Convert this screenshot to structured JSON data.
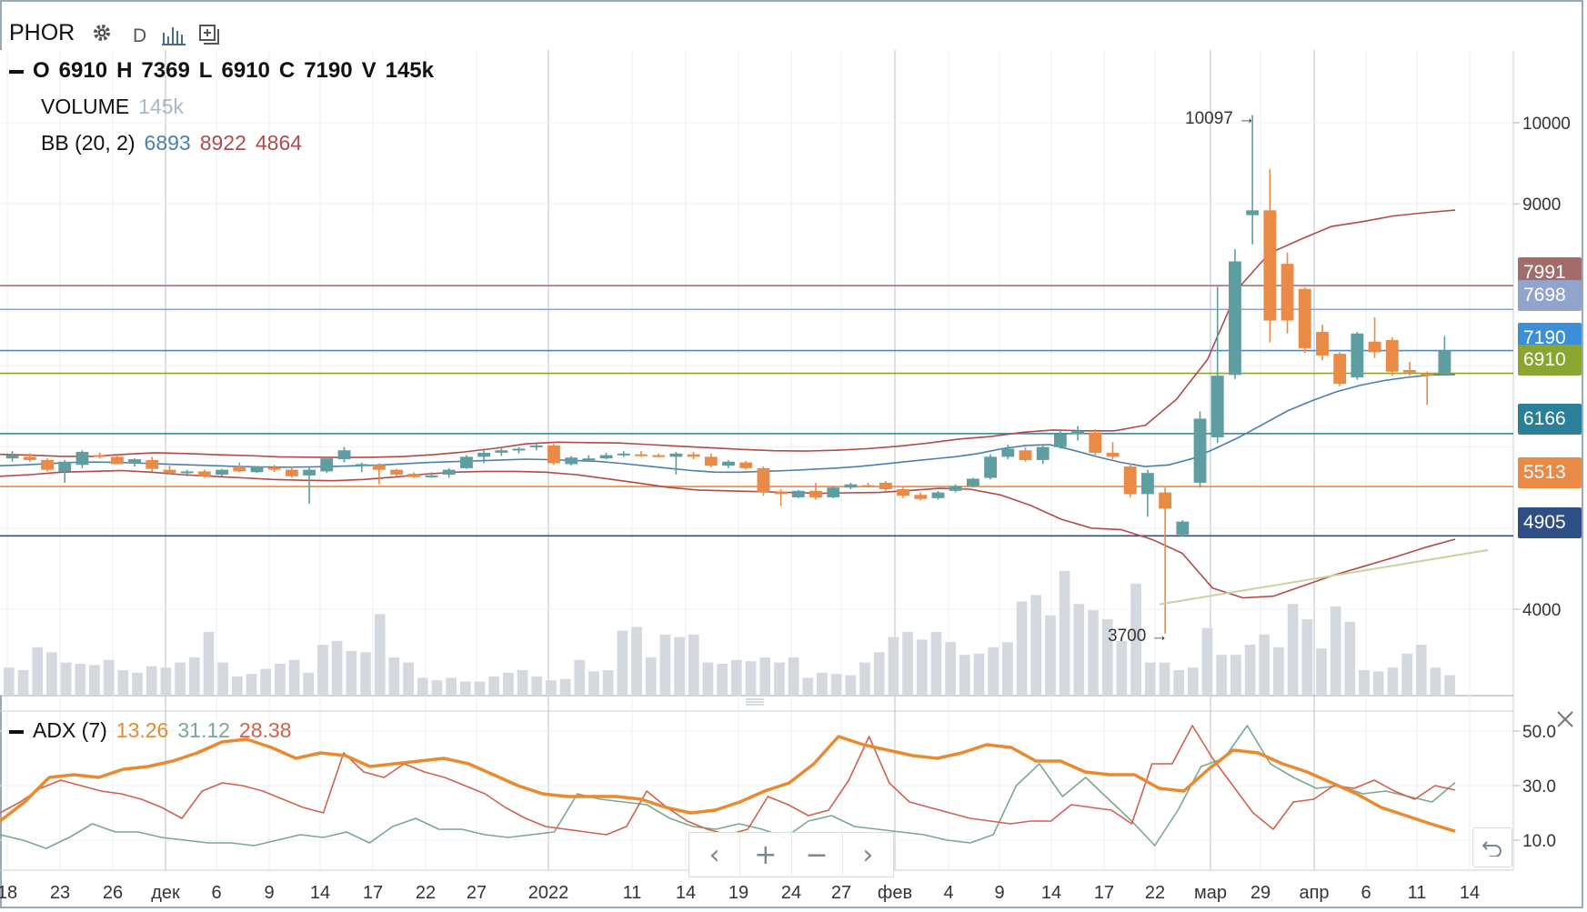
{
  "header": {
    "symbol": "PHOR",
    "timeframe": "D",
    "ohlc": {
      "o_label": "O",
      "o": "6910",
      "h_label": "H",
      "h": "7369",
      "l_label": "L",
      "l": "6910",
      "c_label": "C",
      "c": "7190",
      "v_label": "V",
      "v": "145k"
    },
    "volume_label": "VOLUME",
    "volume_value": "145k",
    "bb_label": "BB (20, 2)",
    "bb_mid": "6893",
    "bb_upper": "8922",
    "bb_lower": "4864",
    "adx_label": "ADX (7)",
    "adx_val": "13.26",
    "pdi_val": "31.12",
    "mdi_val": "28.38"
  },
  "icons": [
    "gear-icon",
    "bars-icon",
    "add-indicator-icon",
    "close-icon",
    "undo-icon",
    "chevron-left-icon",
    "plus-icon",
    "minus-icon",
    "chevron-right-icon"
  ],
  "colors": {
    "up": "#5f9ea0",
    "down": "#e98a47",
    "bb_mid": "#4b7fb0",
    "bb_band": "#b24b47",
    "volume": "#d3d9de",
    "adx": "#e98a30",
    "pdi": "#7aa98d",
    "mdi": "#d46050",
    "trend": "#c7d3a0"
  },
  "price_axis": {
    "ticks": [
      "10000",
      "9000",
      "4000"
    ]
  },
  "adx_axis": {
    "ticks": [
      "50.0",
      "30.0",
      "10.0"
    ]
  },
  "price_tags": [
    {
      "value": "7991",
      "color": "#a36c6a"
    },
    {
      "value": "7698",
      "color": "#93a4cc"
    },
    {
      "value": "7190",
      "color": "#3b8fd9"
    },
    {
      "value": "6910",
      "color": "#8aa631"
    },
    {
      "value": "6166",
      "color": "#2b7f98"
    },
    {
      "value": "5513",
      "color": "#e98a47"
    },
    {
      "value": "4905",
      "color": "#2e4f86"
    }
  ],
  "annotations": {
    "max": "10097 →",
    "min": "3700 →"
  },
  "x_labels": [
    "18",
    "23",
    "26",
    "дек",
    "6",
    "9",
    "14",
    "17",
    "22",
    "27",
    "2022",
    "11",
    "14",
    "19",
    "24",
    "27",
    "фев",
    "4",
    "9",
    "14",
    "17",
    "22",
    "мар",
    "29",
    "апр",
    "6",
    "11",
    "14"
  ],
  "chart_data": {
    "type": "candlestick",
    "ylim": [
      3000,
      10500
    ],
    "adx_ylim": [
      0,
      60
    ],
    "horizontal_levels": [
      7991,
      7698,
      7190,
      6910,
      6166,
      5513,
      4905
    ],
    "candles": [
      [
        5860,
        5950,
        5820,
        5900
      ],
      [
        5880,
        5920,
        5820,
        5840
      ],
      [
        5840,
        5860,
        5700,
        5720
      ],
      [
        5700,
        5840,
        5560,
        5820
      ],
      [
        5780,
        5960,
        5740,
        5940
      ],
      [
        5900,
        5930,
        5860,
        5880
      ],
      [
        5880,
        5900,
        5790,
        5790
      ],
      [
        5800,
        5860,
        5760,
        5850
      ],
      [
        5840,
        5880,
        5700,
        5730
      ],
      [
        5720,
        5770,
        5660,
        5680
      ],
      [
        5690,
        5720,
        5640,
        5700
      ],
      [
        5700,
        5720,
        5620,
        5640
      ],
      [
        5660,
        5730,
        5640,
        5720
      ],
      [
        5760,
        5810,
        5690,
        5700
      ],
      [
        5690,
        5760,
        5680,
        5760
      ],
      [
        5750,
        5780,
        5690,
        5720
      ],
      [
        5720,
        5760,
        5620,
        5640
      ],
      [
        5650,
        5750,
        5300,
        5720
      ],
      [
        5700,
        5880,
        5680,
        5860
      ],
      [
        5850,
        6000,
        5810,
        5960
      ],
      [
        5780,
        5810,
        5690,
        5790
      ],
      [
        5780,
        5800,
        5540,
        5720
      ],
      [
        5720,
        5730,
        5640,
        5660
      ],
      [
        5670,
        5690,
        5620,
        5630
      ],
      [
        5640,
        5690,
        5620,
        5650
      ],
      [
        5660,
        5740,
        5620,
        5720
      ],
      [
        5740,
        5900,
        5730,
        5880
      ],
      [
        5880,
        5960,
        5800,
        5930
      ],
      [
        5930,
        5990,
        5890,
        5960
      ],
      [
        5960,
        6000,
        5920,
        5980
      ],
      [
        6000,
        6040,
        5960,
        6020
      ],
      [
        6020,
        6040,
        5780,
        5800
      ],
      [
        5790,
        5890,
        5770,
        5870
      ],
      [
        5850,
        5900,
        5820,
        5860
      ],
      [
        5860,
        5930,
        5850,
        5900
      ],
      [
        5900,
        5950,
        5880,
        5920
      ],
      [
        5910,
        5950,
        5880,
        5900
      ],
      [
        5900,
        5920,
        5870,
        5880
      ],
      [
        5880,
        5940,
        5660,
        5920
      ],
      [
        5910,
        5940,
        5850,
        5880
      ],
      [
        5880,
        5920,
        5750,
        5770
      ],
      [
        5770,
        5840,
        5740,
        5820
      ],
      [
        5810,
        5830,
        5720,
        5740
      ],
      [
        5740,
        5760,
        5400,
        5440
      ],
      [
        5450,
        5480,
        5270,
        5420
      ],
      [
        5380,
        5470,
        5370,
        5460
      ],
      [
        5460,
        5560,
        5350,
        5380
      ],
      [
        5380,
        5520,
        5370,
        5500
      ],
      [
        5500,
        5560,
        5480,
        5540
      ],
      [
        5530,
        5560,
        5500,
        5520
      ],
      [
        5560,
        5580,
        5460,
        5480
      ],
      [
        5480,
        5520,
        5370,
        5400
      ],
      [
        5410,
        5440,
        5340,
        5360
      ],
      [
        5370,
        5460,
        5350,
        5440
      ],
      [
        5460,
        5540,
        5440,
        5520
      ],
      [
        5520,
        5620,
        5500,
        5610
      ],
      [
        5620,
        5910,
        5600,
        5880
      ],
      [
        5880,
        6030,
        5850,
        5980
      ],
      [
        5960,
        6000,
        5820,
        5840
      ],
      [
        5840,
        6040,
        5790,
        6000
      ],
      [
        6000,
        6220,
        5980,
        6160
      ],
      [
        6160,
        6260,
        6080,
        6200
      ],
      [
        6180,
        6220,
        5900,
        5930
      ],
      [
        5930,
        6060,
        5850,
        5880
      ],
      [
        5760,
        5800,
        5380,
        5420
      ],
      [
        5420,
        5720,
        5140,
        5680
      ],
      [
        5440,
        5500,
        3700,
        5240
      ],
      [
        4920,
        5100,
        4900,
        5080
      ],
      [
        5560,
        6440,
        5500,
        6350
      ],
      [
        6120,
        7980,
        6050,
        6880
      ],
      [
        6890,
        8440,
        6840,
        8290
      ],
      [
        8860,
        10097,
        8500,
        8920
      ],
      [
        8920,
        9430,
        7290,
        7560
      ],
      [
        8260,
        8400,
        7400,
        7560
      ],
      [
        7950,
        7970,
        7160,
        7220
      ],
      [
        7420,
        7510,
        7070,
        7130
      ],
      [
        7150,
        7170,
        6750,
        6780
      ],
      [
        6860,
        7420,
        6830,
        7400
      ],
      [
        7300,
        7600,
        7100,
        7170
      ],
      [
        7320,
        7350,
        6880,
        6930
      ],
      [
        6950,
        7050,
        6880,
        6920
      ],
      [
        6910,
        6930,
        6520,
        6880
      ],
      [
        6910,
        7369,
        6910,
        7190
      ]
    ],
    "volume": [
      22,
      20,
      38,
      34,
      26,
      25,
      24,
      28,
      20,
      18,
      23,
      22,
      26,
      30,
      50,
      26,
      15,
      17,
      21,
      25,
      28,
      18,
      40,
      43,
      35,
      34,
      64,
      30,
      26,
      14,
      12,
      14,
      11,
      11,
      15,
      18,
      20,
      15,
      12,
      13,
      28,
      19,
      20,
      51,
      54,
      30,
      48,
      46,
      48,
      26,
      25,
      28,
      27,
      30,
      26,
      30,
      14,
      18,
      17,
      16,
      26,
      34,
      46,
      50,
      44,
      50,
      42,
      32,
      33,
      38,
      42,
      74,
      79,
      63,
      98,
      72,
      67,
      60,
      43,
      88,
      26,
      26,
      20,
      22,
      53,
      32,
      32,
      40,
      48,
      38,
      72,
      60,
      37,
      70,
      58,
      20,
      19,
      22,
      33,
      40,
      22,
      16
    ],
    "bb_mid": [
      5770,
      5780,
      5795,
      5810,
      5815,
      5810,
      5800,
      5790,
      5780,
      5770,
      5760,
      5755,
      5752,
      5755,
      5762,
      5770,
      5780,
      5795,
      5810,
      5820,
      5830,
      5840,
      5850,
      5845,
      5835,
      5825,
      5800,
      5770,
      5740,
      5710,
      5690,
      5690,
      5700,
      5710,
      5725,
      5740,
      5760,
      5790,
      5820,
      5850,
      5880,
      5920,
      5980,
      6020,
      6030,
      5960,
      5880,
      5810,
      5760,
      5780,
      5860,
      5990,
      6130,
      6290,
      6450,
      6570,
      6680,
      6760,
      6820,
      6860,
      6890,
      6893
    ],
    "bb_upper": [
      5910,
      5900,
      5885,
      5885,
      5910,
      5930,
      5920,
      5905,
      5895,
      5880,
      5875,
      5872,
      5874,
      5883,
      5905,
      5940,
      5985,
      6040,
      6060,
      6055,
      6050,
      6030,
      6010,
      5990,
      5970,
      5955,
      5950,
      5960,
      5980,
      6010,
      6050,
      6100,
      6130,
      6180,
      6210,
      6200,
      6200,
      6270,
      6590,
      7080,
      7960,
      8390,
      8560,
      8720,
      8780,
      8850,
      8890,
      8922
    ],
    "bb_lower": [
      5640,
      5660,
      5690,
      5700,
      5710,
      5690,
      5660,
      5640,
      5620,
      5600,
      5590,
      5585,
      5600,
      5630,
      5665,
      5690,
      5700,
      5700,
      5690,
      5660,
      5610,
      5560,
      5505,
      5470,
      5460,
      5450,
      5440,
      5430,
      5435,
      5440,
      5465,
      5490,
      5480,
      5410,
      5280,
      5110,
      5000,
      4980,
      4860,
      4690,
      4260,
      4140,
      4160,
      4290,
      4420,
      4530,
      4640,
      4760,
      4864
    ],
    "trendline": [
      [
        4060,
        4700
      ],
      [
        4430,
        3310
      ]
    ],
    "adx": [
      17,
      24,
      33,
      34,
      33,
      36,
      37,
      39,
      42,
      46,
      47,
      44,
      40,
      42,
      41,
      37,
      38,
      39,
      40,
      38,
      34,
      30,
      27,
      26,
      26,
      26,
      25,
      22,
      20,
      21,
      24,
      28,
      31,
      38,
      48,
      45,
      43,
      41,
      40,
      42,
      45,
      44,
      39,
      39,
      35,
      34,
      34,
      29,
      28,
      36,
      43,
      42,
      38,
      35,
      31,
      27,
      22,
      19,
      16,
      13.26
    ],
    "pdi": [
      12,
      10,
      7,
      11,
      16,
      13,
      13,
      11,
      10,
      9,
      9,
      8,
      10,
      12,
      11,
      13,
      9,
      15,
      18,
      14,
      14,
      12,
      11,
      12,
      13,
      27,
      25,
      24,
      23,
      18,
      15,
      14,
      16,
      14,
      11,
      17,
      19,
      15,
      14,
      13,
      12,
      10,
      9,
      12,
      30,
      38,
      26,
      33,
      25,
      17,
      8,
      21,
      37,
      40,
      52,
      38,
      33,
      29,
      30,
      27,
      28,
      26,
      24,
      31.12
    ],
    "mdi": [
      20,
      24,
      29,
      32,
      30,
      28,
      27,
      25,
      22,
      18,
      28,
      31,
      30,
      28,
      25,
      22,
      20,
      42,
      35,
      33,
      38,
      35,
      33,
      30,
      27,
      22,
      18,
      15,
      14,
      13,
      12,
      15,
      28,
      22,
      17,
      14,
      12,
      14,
      26,
      23,
      19,
      21,
      32,
      48,
      31,
      24,
      22,
      20,
      18,
      17,
      16,
      17,
      17,
      23,
      22,
      21,
      16,
      38,
      38,
      52,
      40,
      30,
      20,
      14,
      24,
      25,
      30,
      29,
      32,
      28,
      25,
      30,
      28.38
    ]
  }
}
